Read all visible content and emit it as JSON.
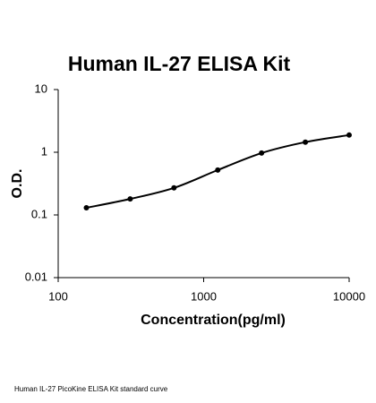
{
  "chart_data": {
    "type": "scatter",
    "title": "Human IL-27 ELISA Kit",
    "x_label": "Concentration(pg/ml)",
    "y_label": "O.D.",
    "caption": "Human IL-27 PicoKine ELISA Kit standard curve",
    "x": [
      156.25,
      312.5,
      625,
      1250,
      2500,
      5000,
      10000
    ],
    "series": [
      {
        "color": "#000000",
        "values": [
          0.13,
          0.18,
          0.27,
          0.52,
          0.97,
          1.45,
          1.88
        ]
      }
    ],
    "trendline": true,
    "log_x": true,
    "log_y": true,
    "xlim": [
      100,
      10000
    ],
    "xticks": [
      100,
      1000,
      10000
    ],
    "ylim": [
      0.01,
      10
    ],
    "yticks": [
      0.01,
      0.1,
      1,
      10
    ]
  }
}
